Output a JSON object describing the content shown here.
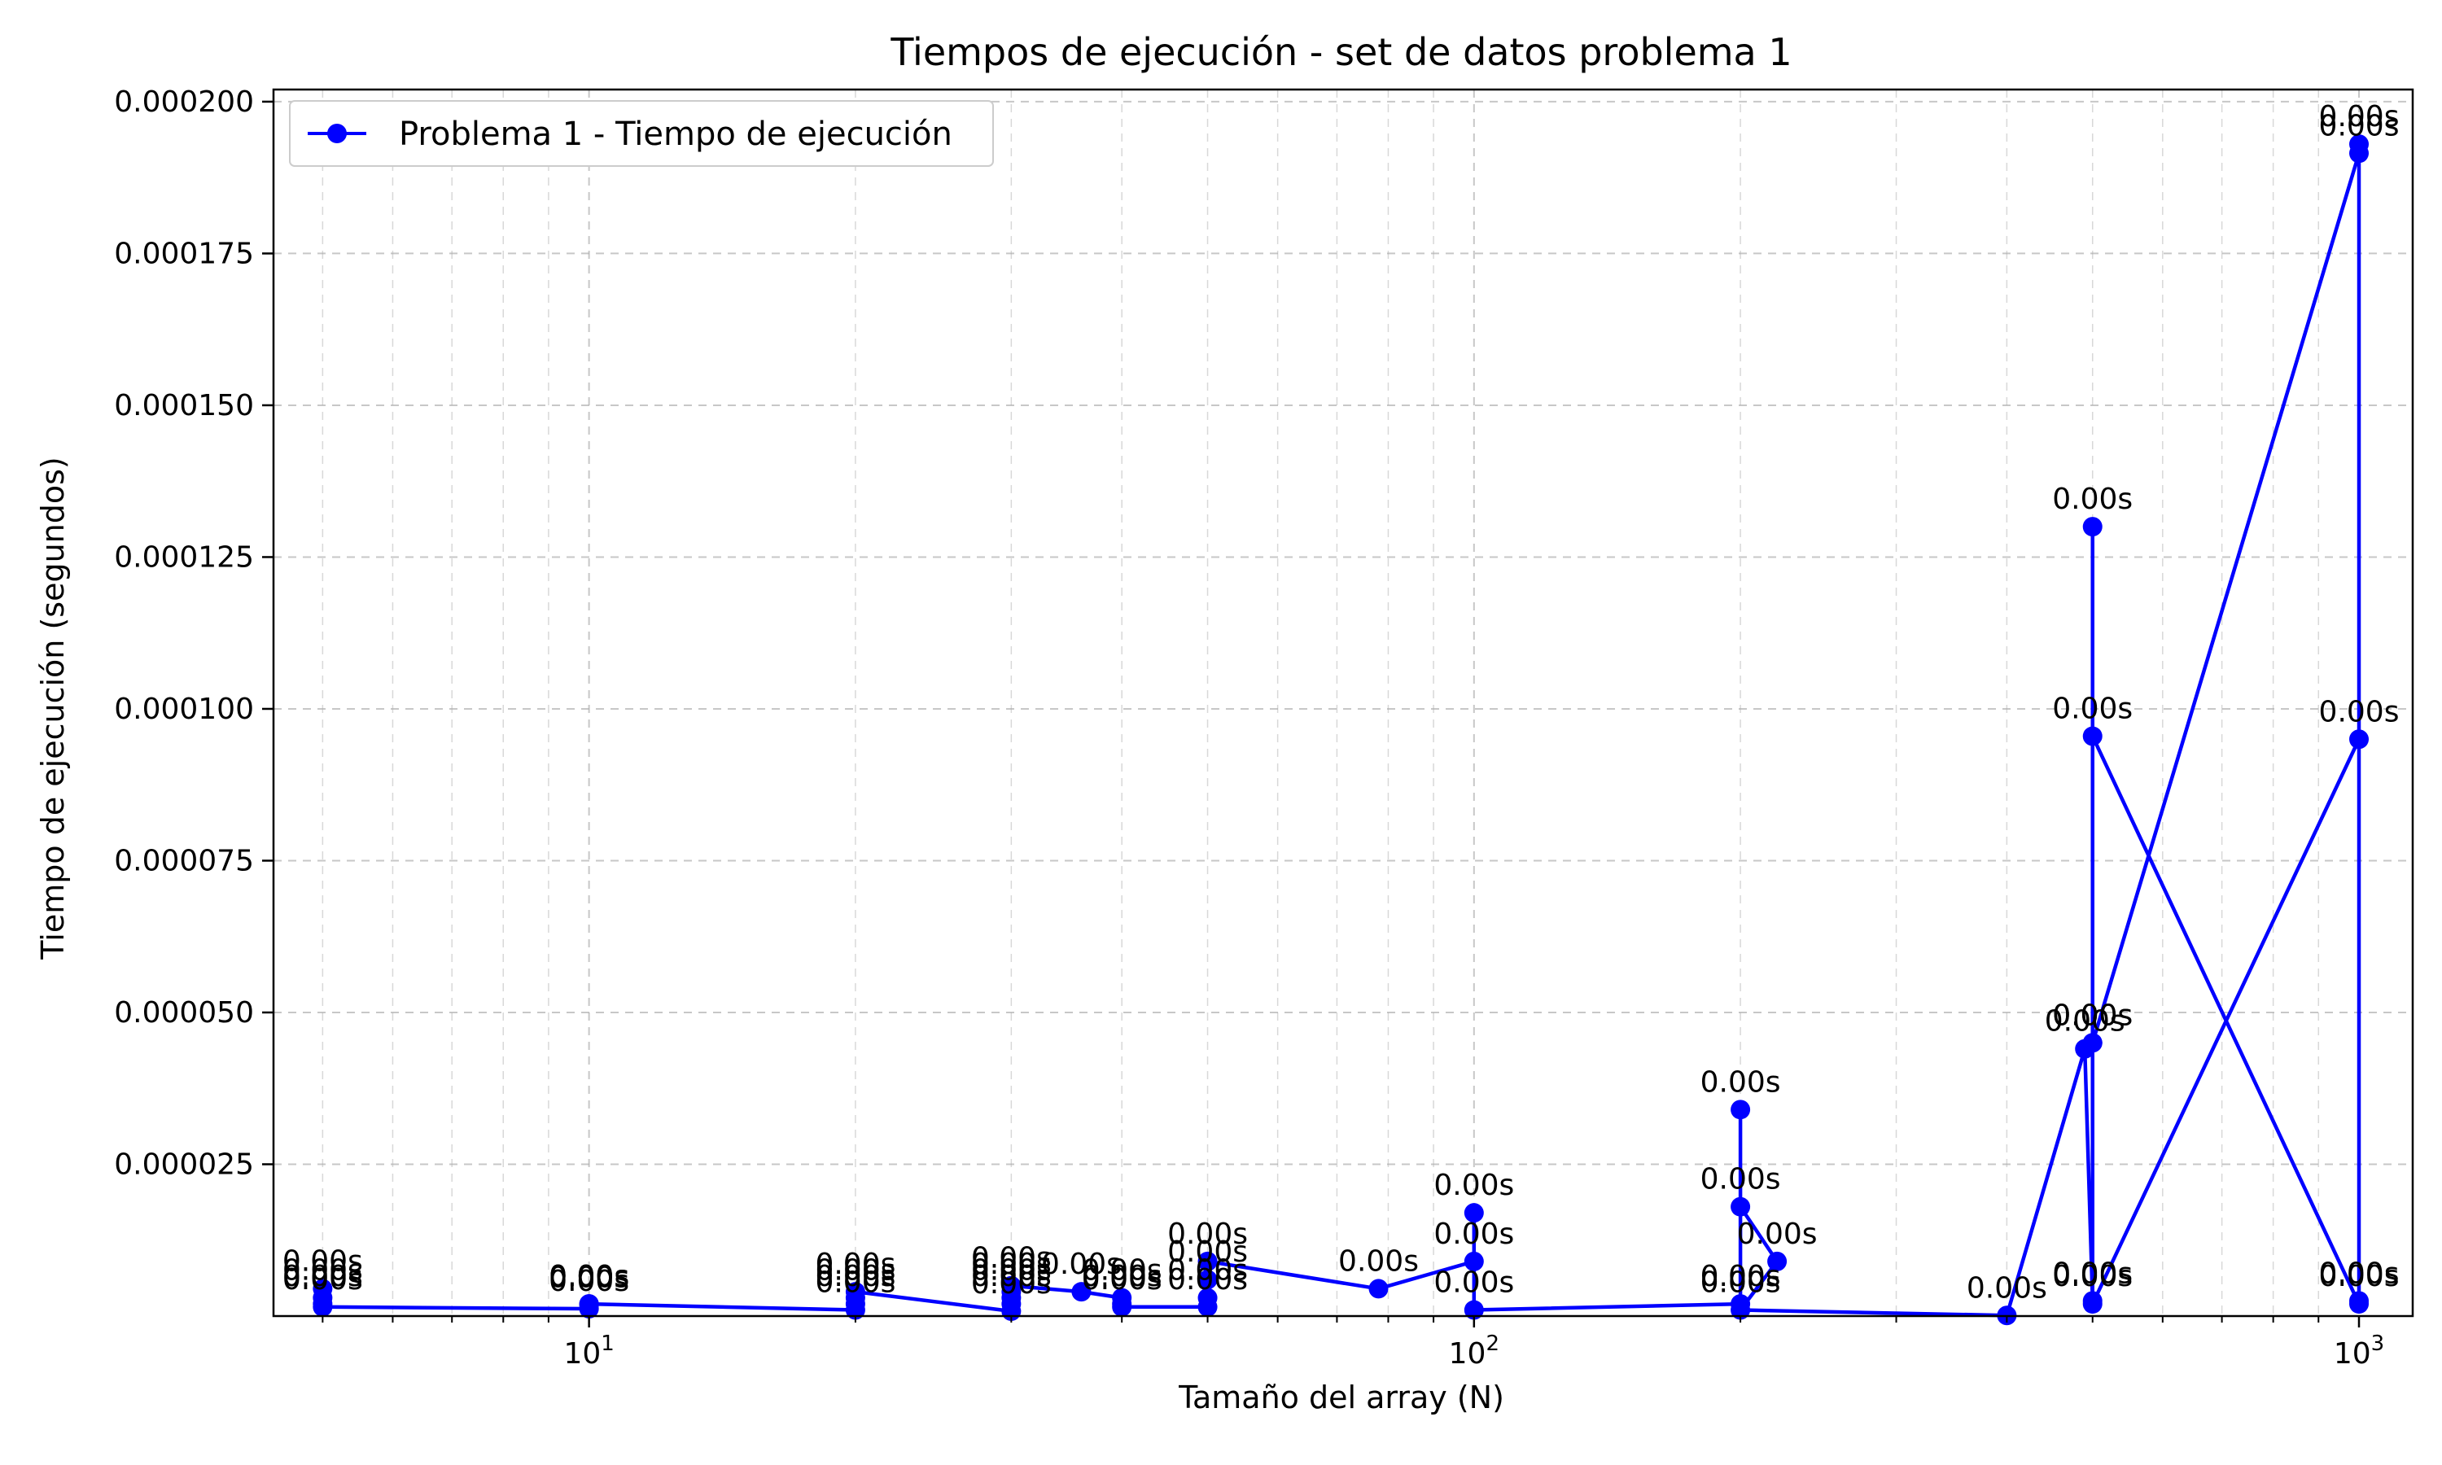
{
  "chart_data": {
    "type": "line",
    "title": "Tiempos de ejecución - set de datos problema 1",
    "xlabel": "Tamaño del array (N)",
    "ylabel": "Tiempo de ejecución (segundos)",
    "xscale": "log",
    "xlim": [
      4.4,
      1150
    ],
    "ylim": [
      0,
      0.000202
    ],
    "x_ticks": [
      {
        "value": 10,
        "base": "10",
        "exp": "1"
      },
      {
        "value": 100,
        "base": "10",
        "exp": "2"
      },
      {
        "value": 1000,
        "base": "10",
        "exp": "3"
      }
    ],
    "y_ticks": [
      {
        "value": 2.5e-05,
        "label": "0.000025"
      },
      {
        "value": 5e-05,
        "label": "0.000050"
      },
      {
        "value": 7.5e-05,
        "label": "0.000075"
      },
      {
        "value": 0.0001,
        "label": "0.000100"
      },
      {
        "value": 0.000125,
        "label": "0.000125"
      },
      {
        "value": 0.00015,
        "label": "0.000150"
      },
      {
        "value": 0.000175,
        "label": "0.000175"
      },
      {
        "value": 0.0002,
        "label": "0.000200"
      }
    ],
    "grid": true,
    "legend_position": "upper-left",
    "series": [
      {
        "name": "Problema 1 - Tiempo de ejecución",
        "color": "#0000ff",
        "marker": "circle",
        "point_label": "0.00s",
        "points": [
          [
            5,
            4.5e-06
          ],
          [
            5,
            3e-06
          ],
          [
            5,
            2e-06
          ],
          [
            5,
            1.5e-06
          ],
          [
            10,
            1.2e-06
          ],
          [
            10,
            1.8e-06
          ],
          [
            10,
            2e-06
          ],
          [
            10,
            2e-06
          ],
          [
            20,
            1e-06
          ],
          [
            20,
            2e-06
          ],
          [
            20,
            3e-06
          ],
          [
            20,
            4e-06
          ],
          [
            30,
            8e-07
          ],
          [
            30,
            2e-06
          ],
          [
            30,
            3e-06
          ],
          [
            30,
            4e-06
          ],
          [
            30,
            5e-06
          ],
          [
            36,
            4e-06
          ],
          [
            40,
            3e-06
          ],
          [
            40,
            2e-06
          ],
          [
            40,
            1.5e-06
          ],
          [
            50,
            1.5e-06
          ],
          [
            50,
            3e-06
          ],
          [
            50,
            6e-06
          ],
          [
            50,
            9e-06
          ],
          [
            78,
            4.5e-06
          ],
          [
            100,
            9e-06
          ],
          [
            100,
            1.7e-05
          ],
          [
            100,
            1e-06
          ],
          [
            200,
            2e-06
          ],
          [
            200,
            3.4e-05
          ],
          [
            200,
            1.8e-05
          ],
          [
            220,
            9e-06
          ],
          [
            200,
            1e-06
          ],
          [
            400,
            1e-07
          ],
          [
            490,
            4.4e-05
          ],
          [
            500,
            2.5e-06
          ],
          [
            500,
            0.00013
          ],
          [
            500,
            4.5e-05
          ],
          [
            500,
            9.55e-05
          ],
          [
            1000,
            2e-06
          ],
          [
            1000,
            9.5e-05
          ],
          [
            500,
            2e-06
          ],
          [
            500,
            4.5e-05
          ],
          [
            1000,
            0.0001915
          ],
          [
            1000,
            0.000193
          ],
          [
            1000,
            2.5e-06
          ]
        ]
      }
    ]
  }
}
